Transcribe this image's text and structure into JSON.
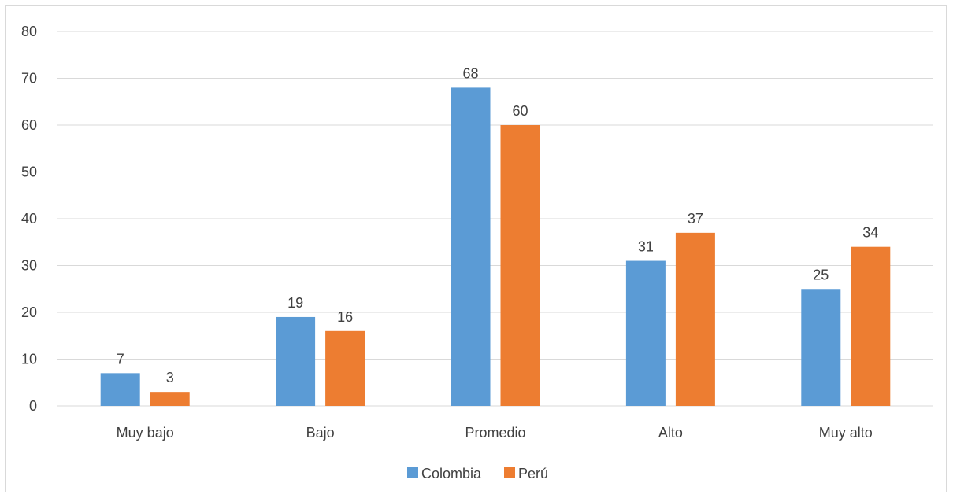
{
  "chart_data": {
    "type": "bar",
    "categories": [
      "Muy bajo",
      "Bajo",
      "Promedio",
      "Alto",
      "Muy alto"
    ],
    "series": [
      {
        "name": "Colombia",
        "color": "#5b9bd5",
        "values": [
          7,
          19,
          68,
          31,
          25
        ]
      },
      {
        "name": "Perú",
        "color": "#ed7d31",
        "values": [
          3,
          16,
          60,
          37,
          34
        ]
      }
    ],
    "ylim": [
      0,
      80
    ],
    "yticks": [
      0,
      10,
      20,
      30,
      40,
      50,
      60,
      70,
      80
    ],
    "grid": true,
    "gridColor": "#d9d9d9",
    "legend_position": "bottom"
  }
}
